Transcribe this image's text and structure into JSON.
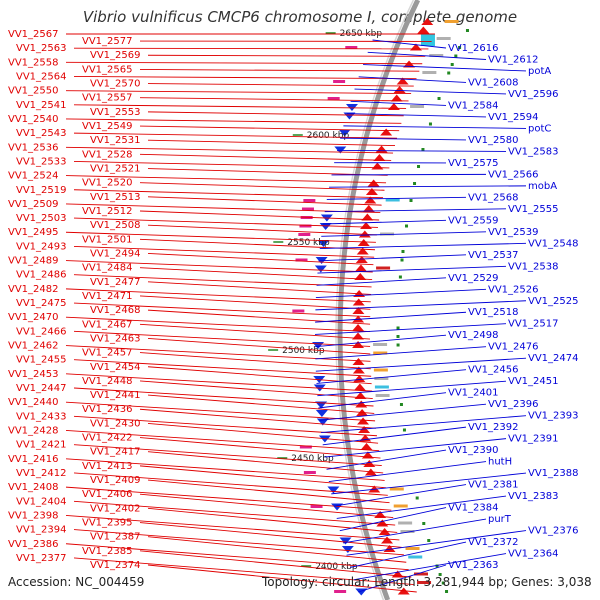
{
  "title": "Vibrio vulnificus CMCP6 chromosome I, complete genome",
  "footer": {
    "accession": "Accession: NC_004459",
    "summary": "Topology: circular; Length: 3,281,944 bp; Genes: 3,038"
  },
  "colors": {
    "left_labels": "#e00000",
    "right_labels": "#0000d8",
    "backbone": "#9a9a9a",
    "ticks": "#228822",
    "magenta_feature": "#e0208c",
    "cyan_feature": "#31c6e0"
  },
  "ticks": [
    "2650 kbp",
    "2600 kbp",
    "2550 kbp",
    "2500 kbp",
    "2450 kbp",
    "2400 kbp"
  ],
  "left_labels": [
    "VV1_2567",
    "VV1_2577",
    "VV1_2563",
    "VV1_2569",
    "VV1_2558",
    "VV1_2565",
    "VV1_2564",
    "VV1_2570",
    "VV1_2550",
    "VV1_2557",
    "VV1_2541",
    "VV1_2553",
    "VV1_2540",
    "VV1_2549",
    "VV1_2543",
    "VV1_2531",
    "VV1_2536",
    "VV1_2528",
    "VV1_2533",
    "VV1_2521",
    "VV1_2524",
    "VV1_2520",
    "VV1_2519",
    "VV1_2513",
    "VV1_2509",
    "VV1_2512",
    "VV1_2503",
    "VV1_2508",
    "VV1_2495",
    "VV1_2501",
    "VV1_2493",
    "VV1_2494",
    "VV1_2489",
    "VV1_2484",
    "VV1_2486",
    "VV1_2477",
    "VV1_2482",
    "VV1_2471",
    "VV1_2475",
    "VV1_2468",
    "VV1_2470",
    "VV1_2467",
    "VV1_2466",
    "VV1_2463",
    "VV1_2462",
    "VV1_2457",
    "VV1_2455",
    "VV1_2454",
    "VV1_2453",
    "VV1_2448",
    "VV1_2447",
    "VV1_2441",
    "VV1_2440",
    "VV1_2436",
    "VV1_2433",
    "VV1_2430",
    "VV1_2428",
    "VV1_2422",
    "VV1_2421",
    "VV1_2417",
    "VV1_2416",
    "VV1_2413",
    "VV1_2412",
    "VV1_2409",
    "VV1_2408",
    "VV1_2406",
    "VV1_2404",
    "VV1_2402",
    "VV1_2398",
    "VV1_2395",
    "VV1_2394",
    "VV1_2387",
    "VV1_2386",
    "VV1_2385",
    "VV1_2377",
    "VV1_2374"
  ],
  "right_labels": [
    "VV1_2616",
    "VV1_2612",
    "potA",
    "VV1_2608",
    "VV1_2596",
    "VV1_2584",
    "VV1_2594",
    "potC",
    "VV1_2580",
    "VV1_2583",
    "VV1_2575",
    "VV1_2566",
    "mobA",
    "VV1_2568",
    "VV1_2555",
    "VV1_2559",
    "VV1_2539",
    "VV1_2548",
    "VV1_2537",
    "VV1_2538",
    "VV1_2529",
    "VV1_2526",
    "VV1_2525",
    "VV1_2518",
    "VV1_2517",
    "VV1_2498",
    "VV1_2476",
    "VV1_2474",
    "VV1_2456",
    "VV1_2451",
    "VV1_2401",
    "VV1_2396",
    "VV1_2393",
    "VV1_2392",
    "VV1_2391",
    "VV1_2390",
    "hutH",
    "VV1_2388",
    "VV1_2381",
    "VV1_2383",
    "VV1_2384",
    "purT",
    "VV1_2376",
    "VV1_2372",
    "VV1_2364",
    "VV1_2363"
  ]
}
